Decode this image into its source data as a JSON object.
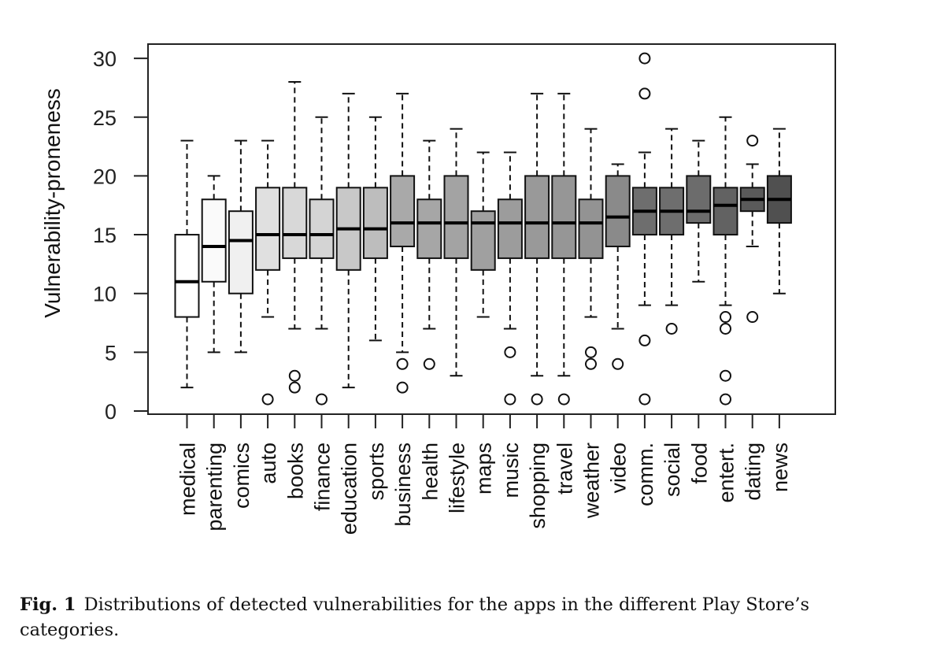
{
  "chart_data": {
    "type": "box",
    "ylabel": "Vulnerability-proneness",
    "ylim": [
      0,
      30
    ],
    "yticks": [
      0,
      5,
      10,
      15,
      20,
      25,
      30
    ],
    "grid": false,
    "legend": "none",
    "categories": [
      "medical",
      "parenting",
      "comics",
      "auto",
      "books",
      "finance",
      "education",
      "sports",
      "business",
      "health",
      "lifestyle",
      "maps",
      "music",
      "shopping",
      "travel",
      "weather",
      "video",
      "comm.",
      "social",
      "food",
      "entert.",
      "dating",
      "news"
    ],
    "fill_colors": [
      "#ffffff",
      "#fafafa",
      "#f0f0f0",
      "#e0e0e0",
      "#d8d8d8",
      "#d4d4d4",
      "#c8c8c8",
      "#bdbdbd",
      "#a9a9a9",
      "#a6a6a6",
      "#a3a3a3",
      "#a0a0a0",
      "#9c9c9c",
      "#999999",
      "#969696",
      "#939393",
      "#8a8a8a",
      "#6e6e6e",
      "#6e6e6e",
      "#6c6c6c",
      "#626262",
      "#5a5a5a",
      "#505050"
    ],
    "boxes": [
      {
        "category": "medical",
        "whisker_low": 2,
        "q1": 8,
        "median": 11,
        "q3": 15,
        "whisker_high": 23,
        "outliers": []
      },
      {
        "category": "parenting",
        "whisker_low": 5,
        "q1": 11,
        "median": 14,
        "q3": 18,
        "whisker_high": 20,
        "outliers": []
      },
      {
        "category": "comics",
        "whisker_low": 5,
        "q1": 10,
        "median": 14.5,
        "q3": 17,
        "whisker_high": 23,
        "outliers": []
      },
      {
        "category": "auto",
        "whisker_low": 8,
        "q1": 12,
        "median": 15,
        "q3": 19,
        "whisker_high": 23,
        "outliers": [
          1
        ]
      },
      {
        "category": "books",
        "whisker_low": 7,
        "q1": 13,
        "median": 15,
        "q3": 19,
        "whisker_high": 28,
        "outliers": [
          2,
          3
        ]
      },
      {
        "category": "finance",
        "whisker_low": 7,
        "q1": 13,
        "median": 15,
        "q3": 18,
        "whisker_high": 25,
        "outliers": [
          1
        ]
      },
      {
        "category": "education",
        "whisker_low": 2,
        "q1": 12,
        "median": 15.5,
        "q3": 19,
        "whisker_high": 27,
        "outliers": []
      },
      {
        "category": "sports",
        "whisker_low": 6,
        "q1": 13,
        "median": 15.5,
        "q3": 19,
        "whisker_high": 25,
        "outliers": []
      },
      {
        "category": "business",
        "whisker_low": 5,
        "q1": 14,
        "median": 16,
        "q3": 20,
        "whisker_high": 27,
        "outliers": [
          2,
          4
        ]
      },
      {
        "category": "health",
        "whisker_low": 7,
        "q1": 13,
        "median": 16,
        "q3": 18,
        "whisker_high": 23,
        "outliers": [
          4
        ]
      },
      {
        "category": "lifestyle",
        "whisker_low": 3,
        "q1": 13,
        "median": 16,
        "q3": 20,
        "whisker_high": 24,
        "outliers": []
      },
      {
        "category": "maps",
        "whisker_low": 8,
        "q1": 12,
        "median": 16,
        "q3": 17,
        "whisker_high": 22,
        "outliers": []
      },
      {
        "category": "music",
        "whisker_low": 7,
        "q1": 13,
        "median": 16,
        "q3": 18,
        "whisker_high": 22,
        "outliers": [
          1,
          5
        ]
      },
      {
        "category": "shopping",
        "whisker_low": 3,
        "q1": 13,
        "median": 16,
        "q3": 20,
        "whisker_high": 27,
        "outliers": [
          1
        ]
      },
      {
        "category": "travel",
        "whisker_low": 3,
        "q1": 13,
        "median": 16,
        "q3": 20,
        "whisker_high": 27,
        "outliers": [
          1
        ]
      },
      {
        "category": "weather",
        "whisker_low": 8,
        "q1": 13,
        "median": 16,
        "q3": 18,
        "whisker_high": 24,
        "outliers": [
          4,
          5
        ]
      },
      {
        "category": "video",
        "whisker_low": 7,
        "q1": 14,
        "median": 16.5,
        "q3": 20,
        "whisker_high": 21,
        "outliers": [
          4
        ]
      },
      {
        "category": "comm.",
        "whisker_low": 9,
        "q1": 15,
        "median": 17,
        "q3": 19,
        "whisker_high": 22,
        "outliers": [
          1,
          6,
          27,
          30
        ]
      },
      {
        "category": "social",
        "whisker_low": 9,
        "q1": 15,
        "median": 17,
        "q3": 19,
        "whisker_high": 24,
        "outliers": [
          7
        ]
      },
      {
        "category": "food",
        "whisker_low": 11,
        "q1": 16,
        "median": 17,
        "q3": 20,
        "whisker_high": 23,
        "outliers": []
      },
      {
        "category": "entert.",
        "whisker_low": 9,
        "q1": 15,
        "median": 17.5,
        "q3": 19,
        "whisker_high": 25,
        "outliers": [
          1,
          3,
          7,
          8
        ]
      },
      {
        "category": "dating",
        "whisker_low": 14,
        "q1": 17,
        "median": 18,
        "q3": 19,
        "whisker_high": 21,
        "outliers": [
          8,
          23
        ]
      },
      {
        "category": "news",
        "whisker_low": 10,
        "q1": 16,
        "median": 18,
        "q3": 20,
        "whisker_high": 24,
        "outliers": []
      }
    ]
  },
  "caption": {
    "label": "Fig. 1",
    "text": "Distributions of detected vulnerabilities for the apps in the different Play Store’s categories."
  }
}
